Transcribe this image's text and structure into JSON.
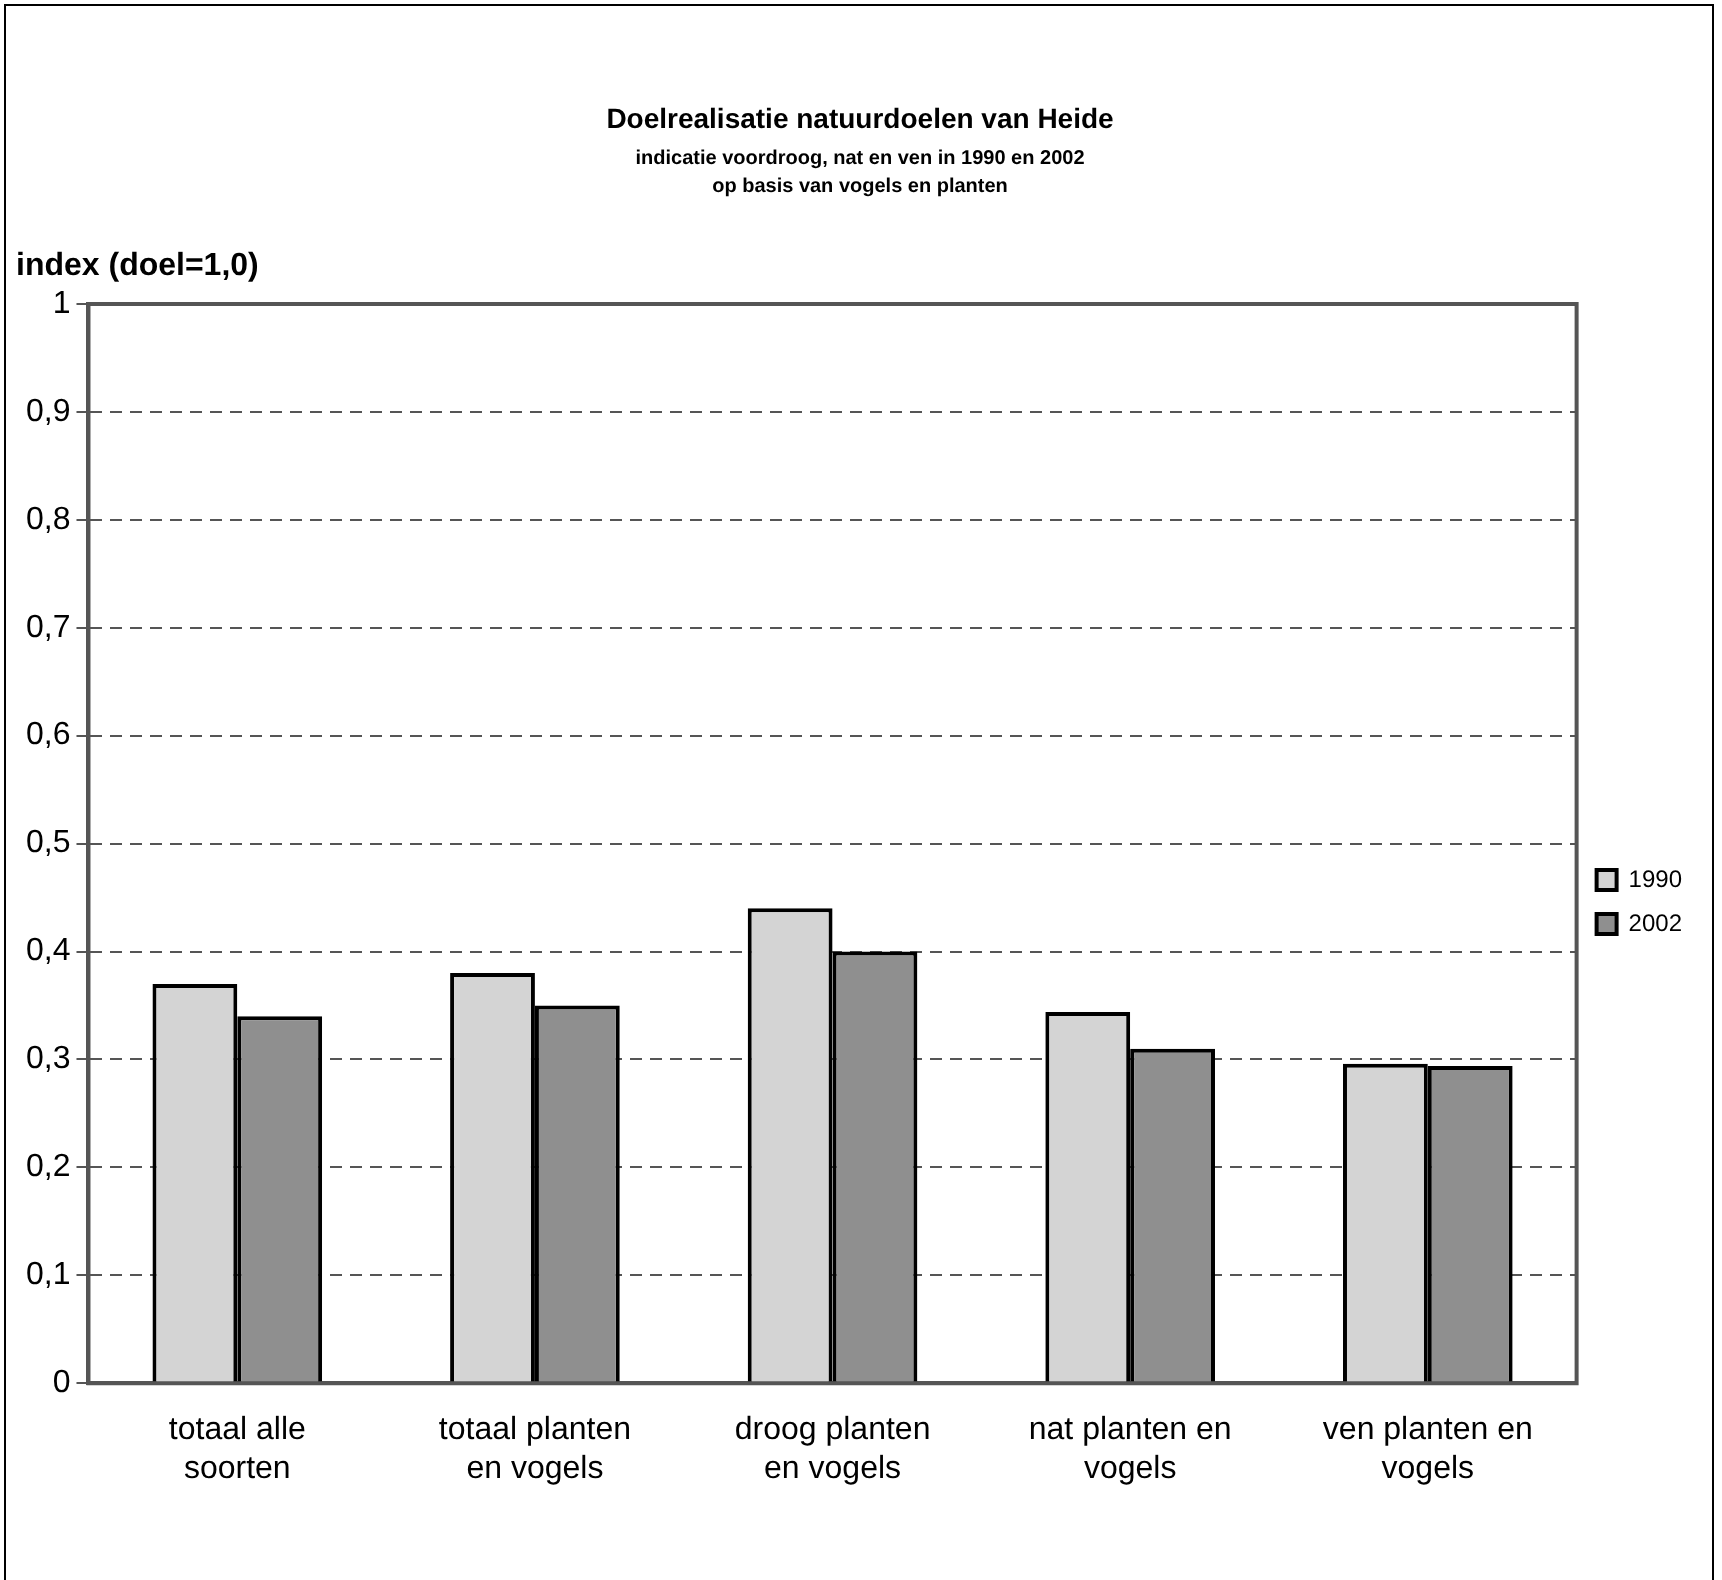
{
  "chart_data": {
    "type": "bar",
    "title": "Doelrealisatie natuurdoelen van Heide",
    "subtitle": "indicatie voordroog, nat en ven in 1990 en 2002\nop basis van vogels en planten",
    "ylabel": "index (doel=1,0)",
    "categories": [
      "totaal alle soorten",
      "totaal planten en vogels",
      "droog planten en vogels",
      "nat planten en vogels",
      "ven planten en vogels"
    ],
    "series": [
      {
        "name": "1990",
        "color": "#d4d4d4",
        "values": [
          0.37,
          0.38,
          0.44,
          0.344,
          0.296
        ]
      },
      {
        "name": "2002",
        "color": "#8f8f8f",
        "values": [
          0.34,
          0.35,
          0.4,
          0.31,
          0.294
        ]
      }
    ],
    "ylim": [
      0,
      1
    ],
    "yticks": [
      0,
      {
        "value": 0.1,
        "label": "0,1"
      },
      {
        "value": 0.2,
        "label": "0,2"
      },
      {
        "value": 0.3,
        "label": "0,3"
      },
      {
        "value": 0.4,
        "label": "0,4"
      },
      {
        "value": 0.5,
        "label": "0,5"
      },
      {
        "value": 0.6,
        "label": "0,6"
      },
      {
        "value": 0.7,
        "label": "0,7"
      },
      {
        "value": 0.8,
        "label": "0,8"
      },
      {
        "value": 0.9,
        "label": "0,9"
      },
      1
    ],
    "grid": "y",
    "legend": "right"
  }
}
